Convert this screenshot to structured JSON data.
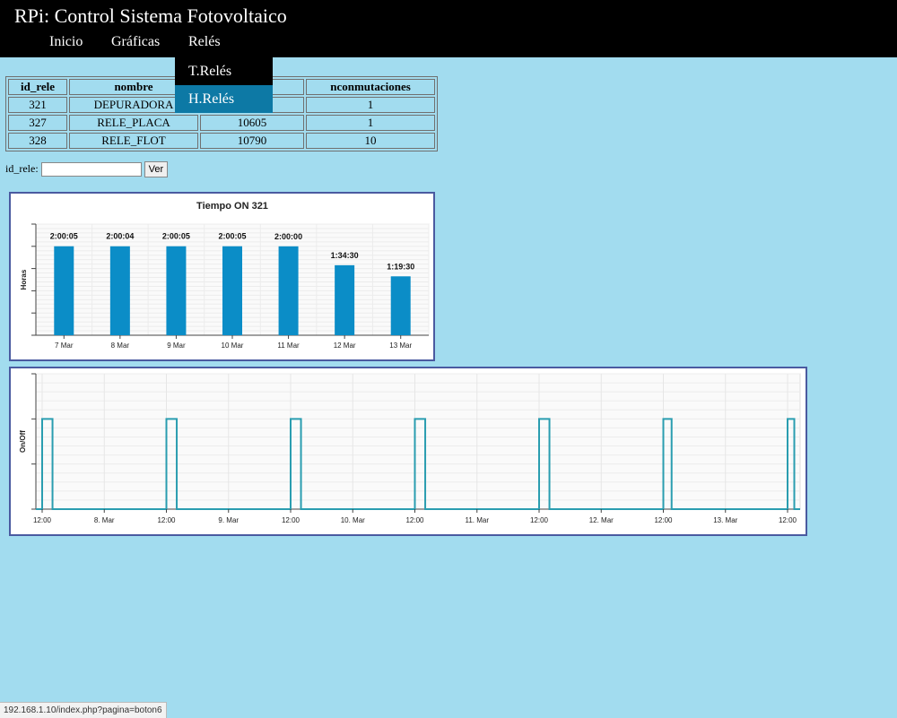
{
  "header": {
    "title": "RPi: Control Sistema Fotovoltaico",
    "nav": [
      {
        "label": "Inicio"
      },
      {
        "label": "Gráficas"
      },
      {
        "label": "Relés"
      }
    ]
  },
  "dropdown": {
    "items": [
      {
        "label": "T.Relés",
        "active": false
      },
      {
        "label": "H.Relés",
        "active": true
      }
    ]
  },
  "table": {
    "headers": [
      "id_rele",
      "nombre",
      "n",
      "nconmutaciones"
    ],
    "rows": [
      [
        "321",
        "DEPURADORA",
        "",
        "1"
      ],
      [
        "327",
        "RELE_PLACA",
        "10605",
        "1"
      ],
      [
        "328",
        "RELE_FLOT",
        "10790",
        "10"
      ]
    ]
  },
  "form": {
    "label": "id_rele:",
    "input_value": "",
    "button_label": "Ver"
  },
  "chart_data": [
    {
      "type": "bar",
      "title": "Tiempo ON 321",
      "xlabel": "",
      "ylabel": "Horas",
      "categories": [
        "7 Mar",
        "8 Mar",
        "9 Mar",
        "10 Mar",
        "11 Mar",
        "12 Mar",
        "13 Mar"
      ],
      "values": [
        2.0014,
        2.0011,
        2.0014,
        2.0014,
        2.0,
        1.575,
        1.325
      ],
      "data_labels": [
        "2:00:05",
        "2:00:04",
        "2:00:05",
        "2:00:05",
        "2:00:00",
        "1:34:30",
        "1:19:30"
      ],
      "ylim": [
        0,
        2.5
      ],
      "color": "#0b8dc7",
      "grid": true
    },
    {
      "type": "line",
      "title": "",
      "xlabel": "",
      "ylabel": "On/Off",
      "x_tick_labels": [
        "12:00",
        "8. Mar",
        "12:00",
        "9. Mar",
        "12:00",
        "10. Mar",
        "12:00",
        "11. Mar",
        "12:00",
        "12. Mar",
        "12:00",
        "13. Mar",
        "12:00"
      ],
      "x_range_hours": [
        0,
        144
      ],
      "on_intervals_hours": [
        [
          0,
          2
        ],
        [
          24,
          26
        ],
        [
          48,
          50
        ],
        [
          72,
          74
        ],
        [
          96,
          98
        ],
        [
          120,
          121.6
        ],
        [
          144,
          145.3
        ]
      ],
      "ylim": [
        0,
        1.5
      ],
      "color": "#2a9db0",
      "grid": true
    }
  ],
  "status_bar": {
    "url": "192.168.1.10/index.php?pagina=boton6"
  }
}
